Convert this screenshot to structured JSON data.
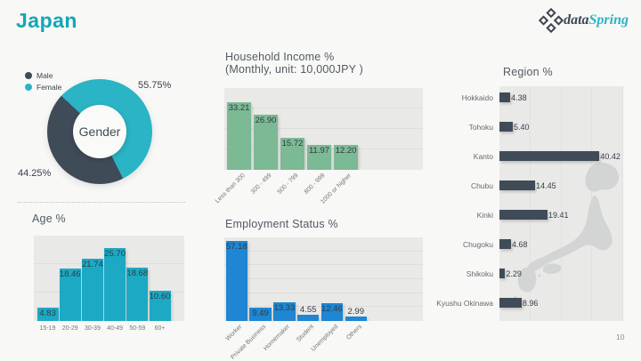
{
  "page": {
    "title": "Japan",
    "page_number": "10"
  },
  "logo": {
    "text_dark": "data",
    "text_teal": "Spring"
  },
  "colors": {
    "accent_teal": "#14a7b5",
    "donut_teal": "#2ab4c5",
    "dark_slate": "#404b58",
    "age_teal": "#1ba9c4",
    "income_green": "#7cb995",
    "employment_blue": "#1e86d3",
    "plot_background": "#e9e9e7",
    "page_background": "#f8f8f6"
  },
  "chart_data": [
    {
      "id": "gender",
      "type": "pie",
      "title": "Gender",
      "center_label": "Gender",
      "start_angle_deg": -47,
      "legend": [
        {
          "label": "Male",
          "color": "#404b58"
        },
        {
          "label": "Female",
          "color": "#2ab4c5"
        }
      ],
      "slices": [
        {
          "label": "Male",
          "value": 44.25,
          "display": "44.25%",
          "color": "#404b58"
        },
        {
          "label": "Female",
          "value": 55.75,
          "display": "55.75%",
          "color": "#2ab4c5"
        }
      ]
    },
    {
      "id": "age",
      "type": "bar",
      "title": "Age %",
      "categories": [
        "15-19",
        "20-29",
        "30-39",
        "40-49",
        "50-59",
        "60+"
      ],
      "values": [
        4.83,
        18.46,
        21.74,
        25.7,
        18.68,
        10.6
      ],
      "color": "#1ba9c4",
      "ylim": [
        0,
        30
      ],
      "grid_step": 10,
      "rotated_labels": false
    },
    {
      "id": "income",
      "type": "bar",
      "title_line1": "Household Income %",
      "title_line2": "(Monthly, unit: 10,000JPY )",
      "categories": [
        "Less than 300",
        "300 - 499",
        "500 - 799",
        "800 - 999",
        "1000 or higher"
      ],
      "values": [
        33.21,
        26.9,
        15.72,
        11.97,
        12.2
      ],
      "color": "#7cb995",
      "ylim": [
        0,
        40
      ],
      "grid_step": 10,
      "rotated_labels": true
    },
    {
      "id": "employment",
      "type": "bar",
      "title": "Employment Status %",
      "categories": [
        "Worker",
        "Private Business",
        "Homemaker",
        "Student",
        "Unemployed",
        "Others"
      ],
      "values": [
        57.18,
        9.49,
        13.33,
        4.55,
        12.46,
        2.99
      ],
      "color": "#1e86d3",
      "ylim": [
        0,
        60
      ],
      "grid_step": 10,
      "rotated_labels": true
    },
    {
      "id": "region",
      "type": "hbar",
      "title": "Region %",
      "categories": [
        "Hokkaido",
        "Tohoku",
        "Kanto",
        "Chubu",
        "Kinki",
        "Chugoku",
        "Shikoku",
        "Kyushu Okinawa"
      ],
      "values": [
        4.38,
        5.4,
        40.42,
        14.45,
        19.41,
        4.68,
        2.29,
        8.96
      ],
      "color": "#404b58",
      "xlim": [
        0,
        50
      ],
      "grid_on": true
    }
  ]
}
